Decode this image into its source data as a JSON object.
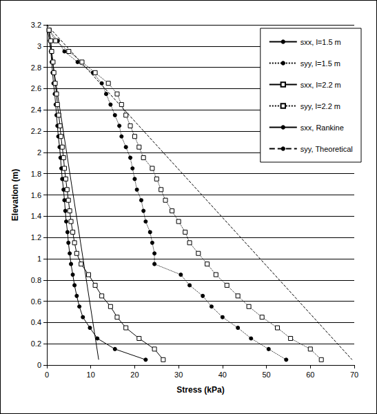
{
  "chart_data": {
    "type": "line",
    "x_label": "Stress (kPa)",
    "y_label": "Elevation (m)",
    "xlim": [
      0,
      70
    ],
    "xticks": [
      0,
      10,
      20,
      30,
      40,
      50,
      60,
      70
    ],
    "ylim": [
      0,
      3.2
    ],
    "yticks": [
      0,
      0.2,
      0.4,
      0.6,
      0.8,
      1,
      1.2,
      1.4,
      1.6,
      1.8,
      2,
      2.2,
      2.4,
      2.6,
      2.8,
      3,
      3.2
    ],
    "grid": "y",
    "legend": "upper right",
    "series": [
      {
        "name": "sxx, l=1.5 m",
        "color": "#000000",
        "marker": "circle",
        "line_style": "solid",
        "x": [
          0.5,
          0.7,
          0.9,
          1.1,
          1.3,
          1.5,
          1.8,
          2.0,
          2.2,
          2.4,
          2.6,
          2.9,
          3.1,
          3.3,
          3.5,
          3.8,
          4.0,
          4.2,
          4.4,
          4.7,
          4.9,
          5.2,
          5.5,
          5.9,
          6.3,
          6.8,
          7.4,
          8.2,
          9.8,
          11.5,
          15.5,
          22.5
        ],
        "values": [
          3.15,
          3.05,
          2.95,
          2.85,
          2.75,
          2.65,
          2.55,
          2.45,
          2.35,
          2.25,
          2.15,
          2.05,
          1.95,
          1.85,
          1.75,
          1.65,
          1.55,
          1.45,
          1.35,
          1.25,
          1.15,
          1.05,
          0.95,
          0.85,
          0.75,
          0.65,
          0.55,
          0.45,
          0.35,
          0.25,
          0.15,
          0.05
        ]
      },
      {
        "name": "syy, l=1.5 m",
        "color": "#000000",
        "marker": "circle",
        "line_style": "dotted",
        "x": [
          0.5,
          2.5,
          4.0,
          7.0,
          10.5,
          12.5,
          13.5,
          14.5,
          15.5,
          16.5,
          17.0,
          18.0,
          19.0,
          19.5,
          20.0,
          20.5,
          21.5,
          22.0,
          22.5,
          23.5,
          24.0,
          24.5,
          24.5,
          30.5,
          32.5,
          35.5,
          37.5,
          40.0,
          43.5,
          46.5,
          50.5,
          54.5
        ],
        "values": [
          3.15,
          3.05,
          2.95,
          2.85,
          2.75,
          2.65,
          2.55,
          2.45,
          2.35,
          2.25,
          2.15,
          2.05,
          1.95,
          1.85,
          1.75,
          1.65,
          1.55,
          1.45,
          1.35,
          1.25,
          1.15,
          1.05,
          0.95,
          0.85,
          0.75,
          0.65,
          0.55,
          0.45,
          0.35,
          0.25,
          0.15,
          0.05
        ]
      },
      {
        "name": "sxx, l=2.2 m",
        "color": "#000000",
        "marker": "open_square",
        "line_style": "solid",
        "x": [
          0.5,
          0.9,
          1.1,
          1.4,
          1.6,
          1.9,
          2.2,
          2.4,
          2.7,
          3.0,
          3.2,
          3.5,
          3.8,
          4.0,
          4.3,
          4.6,
          4.9,
          5.2,
          5.5,
          5.9,
          6.3,
          6.8,
          7.8,
          9.5,
          11.0,
          12.5,
          14.5,
          16.0,
          18.0,
          21.0,
          24.5,
          26.5
        ],
        "values": [
          3.15,
          3.05,
          2.95,
          2.85,
          2.75,
          2.65,
          2.55,
          2.45,
          2.35,
          2.25,
          2.15,
          2.05,
          1.95,
          1.85,
          1.75,
          1.65,
          1.55,
          1.45,
          1.35,
          1.25,
          1.15,
          1.05,
          0.95,
          0.85,
          0.75,
          0.65,
          0.55,
          0.45,
          0.35,
          0.25,
          0.15,
          0.05
        ]
      },
      {
        "name": "syy, l=2.2 m",
        "color": "#000000",
        "marker": "open_square",
        "line_style": "dotted",
        "x": [
          0.5,
          2.0,
          5.0,
          8.0,
          11.0,
          14.0,
          16.0,
          17.0,
          18.0,
          19.0,
          20.0,
          21.0,
          22.0,
          24.0,
          25.0,
          26.0,
          27.0,
          28.5,
          30.0,
          31.5,
          32.5,
          34.5,
          36.5,
          38.5,
          41.0,
          43.5,
          46.0,
          49.0,
          52.5,
          55.5,
          60.0,
          62.5
        ],
        "values": [
          3.15,
          3.05,
          2.95,
          2.85,
          2.75,
          2.65,
          2.55,
          2.45,
          2.35,
          2.25,
          2.15,
          2.05,
          1.95,
          1.85,
          1.75,
          1.65,
          1.55,
          1.45,
          1.35,
          1.25,
          1.15,
          1.05,
          0.95,
          0.85,
          0.75,
          0.65,
          0.55,
          0.45,
          0.35,
          0.25,
          0.15,
          0.05
        ]
      },
      {
        "name": "sxx, Rankine",
        "color": "#000000",
        "marker": "none",
        "line_style": "solid",
        "x": [
          0,
          11.8
        ],
        "values": [
          3.2,
          0.05
        ]
      },
      {
        "name": "syy, Theoretical",
        "color": "#000000",
        "marker": "none",
        "line_style": "dashed",
        "x": [
          0,
          69.5
        ],
        "values": [
          3.2,
          0.05
        ]
      }
    ]
  }
}
